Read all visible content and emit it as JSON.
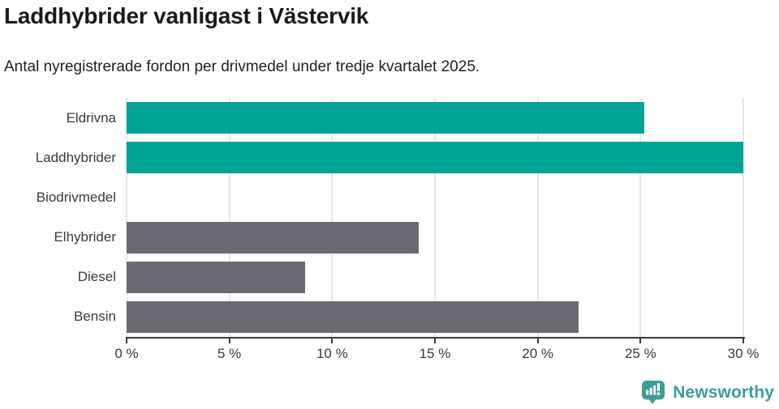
{
  "header": {
    "title": "Laddhybrider vanligast i Västervik",
    "subtitle": "Antal nyregistrerade fordon per drivmedel under tredje kvartalet 2025."
  },
  "chart_data": {
    "type": "bar",
    "orientation": "horizontal",
    "title": "Laddhybrider vanligast i Västervik",
    "subtitle": "Antal nyregistrerade fordon per drivmedel under tredje kvartalet 2025.",
    "categories": [
      "Eldrivna",
      "Laddhybrider",
      "Biodrivmedel",
      "Elhybrider",
      "Diesel",
      "Bensin"
    ],
    "values": [
      25.2,
      30,
      0,
      14.2,
      8.7,
      22
    ],
    "unit": "%",
    "bar_colors": [
      "#00a396",
      "#00a396",
      "#6b6a72",
      "#6b6a72",
      "#6b6a72",
      "#6b6a72"
    ],
    "highlight_color": "#00a396",
    "default_color": "#6b6a72",
    "xlim": [
      0,
      30
    ],
    "xticks": [
      0,
      5,
      10,
      15,
      20,
      25,
      30
    ],
    "xtick_labels": [
      "0 %",
      "5 %",
      "10 %",
      "15 %",
      "20 %",
      "25 %",
      "30 %"
    ],
    "xlabel": "",
    "ylabel": "",
    "grid": "vertical-gridlines-only",
    "gridline_color": "#e6e6e6",
    "axis_color": "#3a3a3a",
    "legend": "none"
  },
  "footer": {
    "brand_label": "Newsworthy",
    "brand_color": "#3d9e97",
    "brand_icon": "newsworthy-speech-bubble-barchart-icon"
  }
}
